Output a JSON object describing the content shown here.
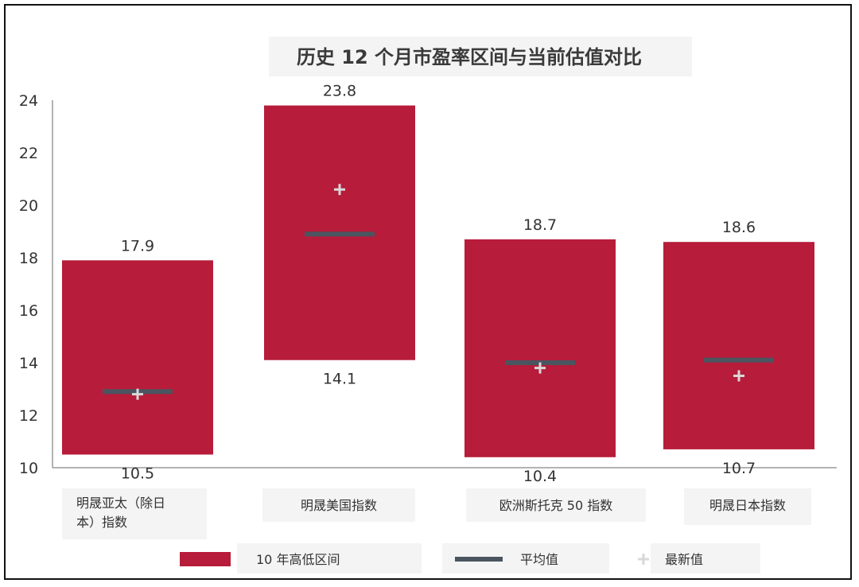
{
  "chart_data": {
    "type": "bar",
    "title": "历史 12 个月市盈率区间与当前估值对比",
    "categories": [
      [
        "明晟亚太（除日",
        "本）指数"
      ],
      [
        "明晟美国指数"
      ],
      [
        "欧洲斯托克 50 指数"
      ],
      [
        "明晟日本指数"
      ]
    ],
    "series": [
      {
        "name": "10 年高低区间",
        "low": [
          10.5,
          14.1,
          10.4,
          10.7
        ],
        "high": [
          17.9,
          23.8,
          18.7,
          18.6
        ]
      },
      {
        "name": "平均值",
        "values": [
          12.9,
          18.9,
          14.0,
          14.1
        ]
      },
      {
        "name": "最新值",
        "values": [
          12.8,
          20.6,
          13.8,
          13.5
        ]
      }
    ],
    "low_labels": [
      "10.5",
      "14.1",
      "10.4",
      "10.7"
    ],
    "high_labels": [
      "17.9",
      "23.8",
      "18.7",
      "18.6"
    ],
    "ylim": [
      10,
      24
    ],
    "yticks": [
      10,
      12,
      14,
      16,
      18,
      20,
      22,
      24
    ],
    "legend": "bottom",
    "colors": {
      "range": "#b71c3a",
      "average": "#4a5560",
      "latest": "#d8d8d8"
    }
  }
}
